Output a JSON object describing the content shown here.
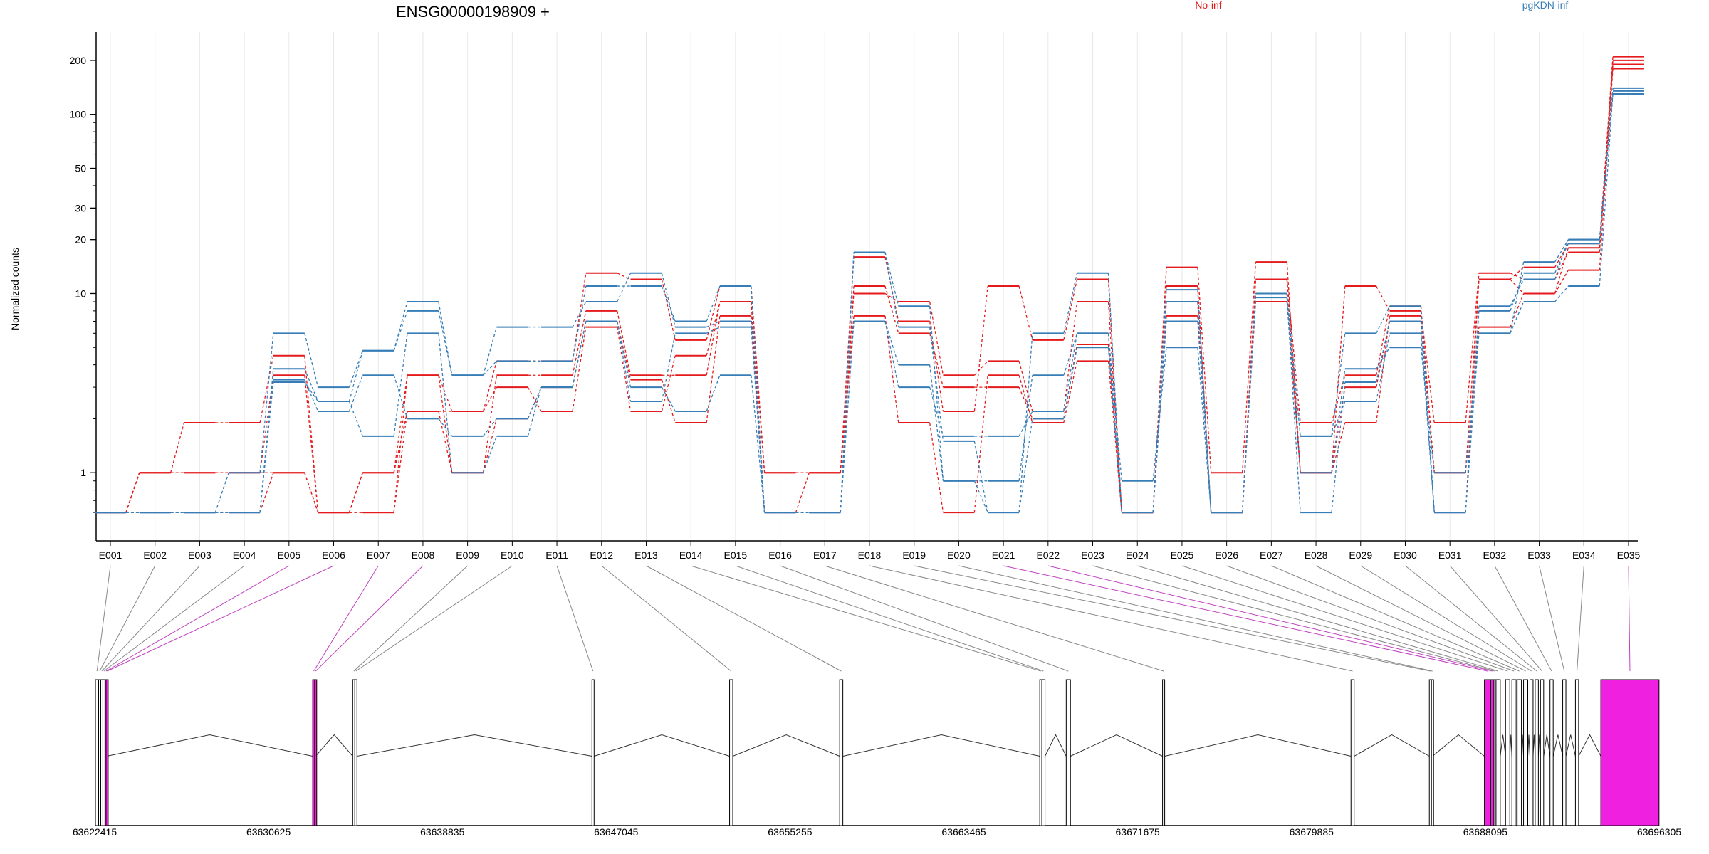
{
  "chart_data": {
    "type": "line",
    "title": "ENSG00000198909 +",
    "ylabel": "Normalized counts",
    "yscale": "log",
    "ylim": [
      0.5,
      240
    ],
    "yticks": [
      1,
      10,
      20,
      30,
      50,
      100,
      200
    ],
    "ytick_labels": [
      "1",
      "10",
      "20",
      "30",
      "50",
      "100",
      "200"
    ],
    "grid": "vertical",
    "legend": [
      {
        "name": "No-inf",
        "color": "#e41a1c",
        "placement": "top-center"
      },
      {
        "name": "pgKDN-inf",
        "color": "#377eb8",
        "placement": "top-right"
      }
    ],
    "categories": [
      "E001",
      "E002",
      "E003",
      "E004",
      "E005",
      "E006",
      "E007",
      "E008",
      "E009",
      "E010",
      "E011",
      "E012",
      "E013",
      "E014",
      "E015",
      "E016",
      "E017",
      "E018",
      "E019",
      "E020",
      "E021",
      "E022",
      "E023",
      "E024",
      "E025",
      "E026",
      "E027",
      "E028",
      "E029",
      "E030",
      "E031",
      "E032",
      "E033",
      "E034",
      "E035"
    ],
    "series": [
      {
        "group": "No-inf",
        "color": "#e41a1c",
        "values": [
          0.6,
          1,
          1,
          1,
          1,
          0.6,
          1,
          2.2,
          1,
          2,
          3,
          7,
          3.3,
          1.9,
          7.5,
          0.6,
          1,
          7.5,
          1.9,
          0.6,
          3.5,
          1.9,
          4.2,
          0.6,
          7.5,
          0.6,
          9,
          1,
          1.9,
          7.5,
          1,
          6.5,
          10,
          13.5,
          180
        ]
      },
      {
        "group": "No-inf",
        "color": "#e41a1c",
        "values": [
          0.6,
          1,
          1.9,
          1.9,
          4.5,
          0.6,
          0.6,
          3.5,
          2.2,
          4.2,
          4.2,
          13,
          12,
          5.5,
          11,
          1,
          1,
          16,
          7,
          2.2,
          11,
          5.5,
          12,
          0.6,
          14,
          1,
          15,
          1,
          11,
          8,
          1.9,
          13,
          12,
          17,
          190
        ]
      },
      {
        "group": "No-inf",
        "color": "#e41a1c",
        "values": [
          0.6,
          0.6,
          0.6,
          0.6,
          1,
          0.6,
          1,
          3.5,
          1,
          3.5,
          3.5,
          8,
          3.5,
          3.5,
          9,
          0.6,
          0.6,
          11,
          6,
          3,
          3,
          2,
          5.2,
          0.6,
          11,
          0.6,
          12,
          1,
          3,
          7,
          0.6,
          12,
          10,
          18,
          200
        ]
      },
      {
        "group": "No-inf",
        "color": "#e41a1c",
        "values": [
          0.6,
          1,
          1,
          1,
          3.5,
          0.6,
          0.6,
          2.2,
          2.2,
          3,
          2.2,
          6.5,
          2.2,
          4.5,
          9,
          1,
          1,
          10,
          9,
          3.5,
          4.2,
          2.2,
          9,
          0.6,
          9,
          0.6,
          12,
          1.9,
          3.5,
          8.5,
          1,
          12,
          14,
          19,
          210
        ]
      },
      {
        "group": "pgKDN-inf",
        "color": "#377eb8",
        "values": [
          0.6,
          0.6,
          0.6,
          0.6,
          3.8,
          2.5,
          4.8,
          8,
          3.5,
          4.2,
          4.2,
          11,
          11,
          7,
          11,
          0.6,
          0.6,
          17,
          8.5,
          0.9,
          0.9,
          3.5,
          6,
          0.9,
          5,
          0.6,
          9.5,
          0.6,
          3.2,
          7,
          0.6,
          6,
          15,
          20,
          130
        ]
      },
      {
        "group": "pgKDN-inf",
        "color": "#377eb8",
        "values": [
          0.6,
          0.6,
          0.6,
          1,
          6,
          3,
          4.8,
          9,
          3.5,
          6.5,
          6.5,
          9,
          13,
          6.5,
          7,
          0.6,
          0.6,
          17,
          6.5,
          1.5,
          0.6,
          6,
          13,
          0.6,
          7,
          0.6,
          10,
          1.6,
          6,
          8.5,
          0.6,
          8,
          13,
          19,
          140
        ]
      },
      {
        "group": "pgKDN-inf",
        "color": "#377eb8",
        "values": [
          0.6,
          0.6,
          0.6,
          0.6,
          3.3,
          2.2,
          3.5,
          2,
          1.6,
          2,
          3,
          7,
          3,
          2.2,
          3.5,
          0.6,
          0.6,
          7,
          3,
          1.6,
          1.6,
          2.2,
          6,
          0.6,
          9,
          0.6,
          10,
          1.6,
          2.5,
          6,
          0.6,
          8.5,
          12,
          20,
          135
        ]
      },
      {
        "group": "pgKDN-inf",
        "color": "#377eb8",
        "values": [
          0.6,
          0.6,
          0.6,
          0.6,
          3.2,
          2.5,
          1.6,
          6,
          1,
          1.6,
          3,
          7,
          2.5,
          6,
          6.5,
          0.6,
          0.6,
          7,
          4,
          0.9,
          0.6,
          2,
          5,
          0.6,
          10.5,
          0.6,
          10,
          1,
          3.8,
          5,
          1,
          6,
          9,
          11,
          130
        ]
      }
    ],
    "transcript_axis": {
      "tick_labels": [
        "63622415",
        "63630625",
        "63638835",
        "63647045",
        "63655255",
        "63663465",
        "63671675",
        "63679885",
        "63688095",
        "63696305"
      ],
      "exons": [
        {
          "id": "E001",
          "start": 63622450,
          "end": 63622600,
          "highlight": false
        },
        {
          "id": "E002",
          "start": 63622600,
          "end": 63622700,
          "highlight": false
        },
        {
          "id": "E003",
          "start": 63622700,
          "end": 63622800,
          "highlight": false
        },
        {
          "id": "E004",
          "start": 63622800,
          "end": 63622900,
          "highlight": false
        },
        {
          "id": "E005",
          "start": 63622900,
          "end": 63622950,
          "highlight": true
        },
        {
          "id": "E006",
          "start": 63622950,
          "end": 63622980,
          "highlight": true
        },
        {
          "id": "E007",
          "start": 63632710,
          "end": 63632800,
          "highlight": true
        },
        {
          "id": "E008",
          "start": 63632800,
          "end": 63632850,
          "highlight": true
        },
        {
          "id": "E009",
          "start": 63634600,
          "end": 63634700,
          "highlight": false
        },
        {
          "id": "E010",
          "start": 63634700,
          "end": 63634800,
          "highlight": false
        },
        {
          "id": "E011",
          "start": 63645900,
          "end": 63646000,
          "highlight": false
        },
        {
          "id": "E012",
          "start": 63652400,
          "end": 63652550,
          "highlight": false
        },
        {
          "id": "E013",
          "start": 63657600,
          "end": 63657750,
          "highlight": false
        },
        {
          "id": "E014",
          "start": 63667050,
          "end": 63667150,
          "highlight": false
        },
        {
          "id": "E015",
          "start": 63667150,
          "end": 63667300,
          "highlight": false
        },
        {
          "id": "E016",
          "start": 63668300,
          "end": 63668500,
          "highlight": false
        },
        {
          "id": "E017",
          "start": 63672850,
          "end": 63672950,
          "highlight": false
        },
        {
          "id": "E018",
          "start": 63681750,
          "end": 63681900,
          "highlight": false
        },
        {
          "id": "E019",
          "start": 63685450,
          "end": 63685550,
          "highlight": false
        },
        {
          "id": "E020",
          "start": 63685550,
          "end": 63685600,
          "highlight": false
        },
        {
          "id": "E021",
          "start": 63688050,
          "end": 63688350,
          "highlight": true
        },
        {
          "id": "E022",
          "start": 63688350,
          "end": 63688500,
          "highlight": true
        },
        {
          "id": "E023",
          "start": 63688500,
          "end": 63688600,
          "highlight": false
        },
        {
          "id": "E024",
          "start": 63688600,
          "end": 63688800,
          "highlight": false
        },
        {
          "id": "E025",
          "start": 63689050,
          "end": 63689250,
          "highlight": false
        },
        {
          "id": "E026",
          "start": 63689350,
          "end": 63689550,
          "highlight": false
        },
        {
          "id": "E027",
          "start": 63689600,
          "end": 63689800,
          "highlight": false
        },
        {
          "id": "E028",
          "start": 63689900,
          "end": 63690100,
          "highlight": false
        },
        {
          "id": "E029",
          "start": 63690200,
          "end": 63690350,
          "highlight": false
        },
        {
          "id": "E030",
          "start": 63690450,
          "end": 63690600,
          "highlight": false
        },
        {
          "id": "E031",
          "start": 63690700,
          "end": 63690850,
          "highlight": false
        },
        {
          "id": "E032",
          "start": 63691150,
          "end": 63691300,
          "highlight": false
        },
        {
          "id": "E033",
          "start": 63691750,
          "end": 63691900,
          "highlight": false
        },
        {
          "id": "E034",
          "start": 63692350,
          "end": 63692500,
          "highlight": false
        },
        {
          "id": "E035",
          "start": 63693550,
          "end": 63696300,
          "highlight": true
        }
      ]
    }
  }
}
